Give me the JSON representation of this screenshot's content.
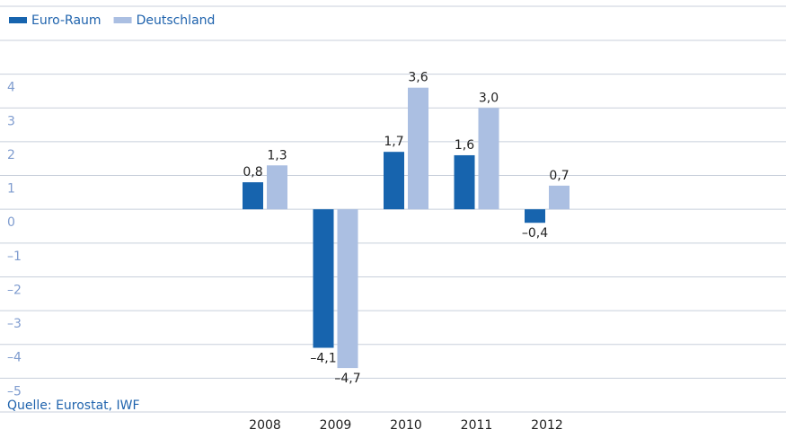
{
  "chart_data": {
    "type": "bar",
    "categories": [
      "2008",
      "2009",
      "2010",
      "2011",
      "2012"
    ],
    "series": [
      {
        "name": "Euro-Raum",
        "color": "#1764ae",
        "values": [
          0.8,
          -4.1,
          1.7,
          1.6,
          -0.4
        ],
        "value_labels": [
          "0,8",
          "–4,1",
          "1,7",
          "1,6",
          "–0,4"
        ]
      },
      {
        "name": "Deutschland",
        "color": "#abbfe2",
        "values": [
          1.3,
          -4.7,
          3.6,
          3.0,
          0.7
        ],
        "value_labels": [
          "1,3",
          "–4,7",
          "3,6",
          "3,0",
          "0,7"
        ]
      }
    ],
    "ylim": [
      -6,
      5
    ],
    "yticks": [
      {
        "value": -5,
        "label": "–5"
      },
      {
        "value": -4,
        "label": "–4"
      },
      {
        "value": -3,
        "label": "–3"
      },
      {
        "value": -2,
        "label": "–2"
      },
      {
        "value": -1,
        "label": "–1"
      },
      0,
      1,
      2,
      3,
      4
    ],
    "grid": true,
    "legend": "top-left",
    "source": "Quelle: Eurostat, IWF"
  }
}
